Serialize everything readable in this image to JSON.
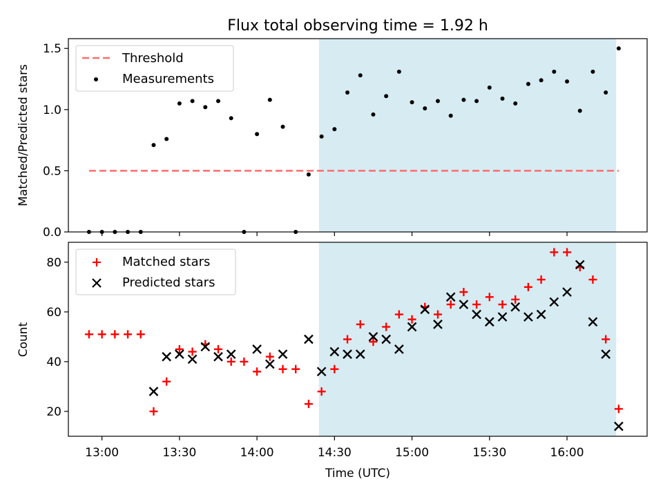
{
  "chart_data": [
    {
      "type": "scatter",
      "panel": "top",
      "title": "Flux total observing time = 1.92 h",
      "xlabel": "",
      "ylabel": "Matched/Predicted stars",
      "ylim": [
        0,
        1.58
      ],
      "yticks": [
        0.0,
        0.5,
        1.0,
        1.5
      ],
      "ytick_labels": [
        "0.0",
        "0.5",
        "1.0",
        "1.5"
      ],
      "legend_position": "top-left",
      "threshold": {
        "name": "Threshold",
        "value": 0.5,
        "x_start": "12:55",
        "x_end": "16:20",
        "color": "#ff6b6b"
      },
      "shaded_span": {
        "x_start": "14:24",
        "x_end": "16:19",
        "color": "#add8e6"
      },
      "series": [
        {
          "name": "Measurements",
          "marker": "dot",
          "color": "#000000",
          "points": [
            [
              "12:55",
              0.0
            ],
            [
              "13:00",
              0.0
            ],
            [
              "13:05",
              0.0
            ],
            [
              "13:10",
              0.0
            ],
            [
              "13:15",
              0.0
            ],
            [
              "13:20",
              0.71
            ],
            [
              "13:25",
              0.76
            ],
            [
              "13:30",
              1.05
            ],
            [
              "13:35",
              1.07
            ],
            [
              "13:40",
              1.02
            ],
            [
              "13:45",
              1.07
            ],
            [
              "13:50",
              0.93
            ],
            [
              "13:55",
              0.0
            ],
            [
              "14:00",
              0.8
            ],
            [
              "14:05",
              1.08
            ],
            [
              "14:10",
              0.86
            ],
            [
              "14:15",
              0.0
            ],
            [
              "14:20",
              0.47
            ],
            [
              "14:25",
              0.78
            ],
            [
              "14:30",
              0.84
            ],
            [
              "14:35",
              1.14
            ],
            [
              "14:40",
              1.28
            ],
            [
              "14:45",
              0.96
            ],
            [
              "14:50",
              1.11
            ],
            [
              "14:55",
              1.31
            ],
            [
              "15:00",
              1.06
            ],
            [
              "15:05",
              1.01
            ],
            [
              "15:10",
              1.07
            ],
            [
              "15:15",
              0.95
            ],
            [
              "15:20",
              1.08
            ],
            [
              "15:25",
              1.07
            ],
            [
              "15:30",
              1.18
            ],
            [
              "15:35",
              1.09
            ],
            [
              "15:40",
              1.05
            ],
            [
              "15:45",
              1.21
            ],
            [
              "15:50",
              1.24
            ],
            [
              "15:55",
              1.31
            ],
            [
              "16:00",
              1.23
            ],
            [
              "16:05",
              0.99
            ],
            [
              "16:10",
              1.31
            ],
            [
              "16:15",
              1.14
            ],
            [
              "16:20",
              1.5
            ]
          ]
        }
      ]
    },
    {
      "type": "scatter",
      "panel": "bottom",
      "title": "",
      "xlabel": "Time (UTC)",
      "ylabel": "Count",
      "ylim": [
        10,
        88
      ],
      "yticks": [
        20,
        40,
        60,
        80
      ],
      "ytick_labels": [
        "20",
        "40",
        "60",
        "80"
      ],
      "xticks": [
        "13:00",
        "13:30",
        "14:00",
        "14:30",
        "15:00",
        "15:30",
        "16:00"
      ],
      "xlim": [
        "12:47",
        "16:31"
      ],
      "legend_position": "top-left",
      "shaded_span": {
        "x_start": "14:24",
        "x_end": "16:19",
        "color": "#add8e6"
      },
      "series": [
        {
          "name": "Matched stars",
          "marker": "plus",
          "color": "#ff0000",
          "points": [
            [
              "12:55",
              51
            ],
            [
              "13:00",
              51
            ],
            [
              "13:05",
              51
            ],
            [
              "13:10",
              51
            ],
            [
              "13:15",
              51
            ],
            [
              "13:20",
              20
            ],
            [
              "13:25",
              32
            ],
            [
              "13:30",
              45
            ],
            [
              "13:35",
              44
            ],
            [
              "13:40",
              47
            ],
            [
              "13:45",
              45
            ],
            [
              "13:50",
              40
            ],
            [
              "13:55",
              40
            ],
            [
              "14:00",
              36
            ],
            [
              "14:05",
              42
            ],
            [
              "14:10",
              37
            ],
            [
              "14:15",
              37
            ],
            [
              "14:20",
              23
            ],
            [
              "14:25",
              28
            ],
            [
              "14:30",
              37
            ],
            [
              "14:35",
              49
            ],
            [
              "14:40",
              55
            ],
            [
              "14:45",
              48
            ],
            [
              "14:50",
              54
            ],
            [
              "14:55",
              59
            ],
            [
              "15:00",
              57
            ],
            [
              "15:05",
              62
            ],
            [
              "15:10",
              59
            ],
            [
              "15:15",
              63
            ],
            [
              "15:20",
              68
            ],
            [
              "15:25",
              63
            ],
            [
              "15:30",
              66
            ],
            [
              "15:35",
              63
            ],
            [
              "15:40",
              65
            ],
            [
              "15:45",
              70
            ],
            [
              "15:50",
              73
            ],
            [
              "15:55",
              84
            ],
            [
              "16:00",
              84
            ],
            [
              "16:05",
              78
            ],
            [
              "16:10",
              73
            ],
            [
              "16:15",
              49
            ],
            [
              "16:20",
              21
            ]
          ]
        },
        {
          "name": "Predicted stars",
          "marker": "x",
          "color": "#000000",
          "points": [
            [
              "13:20",
              28
            ],
            [
              "13:25",
              42
            ],
            [
              "13:30",
              43
            ],
            [
              "13:35",
              41
            ],
            [
              "13:40",
              46
            ],
            [
              "13:45",
              42
            ],
            [
              "13:50",
              43
            ],
            [
              "14:00",
              45
            ],
            [
              "14:05",
              39
            ],
            [
              "14:10",
              43
            ],
            [
              "14:20",
              49
            ],
            [
              "14:25",
              36
            ],
            [
              "14:30",
              44
            ],
            [
              "14:35",
              43
            ],
            [
              "14:40",
              43
            ],
            [
              "14:45",
              50
            ],
            [
              "14:50",
              49
            ],
            [
              "14:55",
              45
            ],
            [
              "15:00",
              54
            ],
            [
              "15:05",
              61
            ],
            [
              "15:10",
              55
            ],
            [
              "15:15",
              66
            ],
            [
              "15:20",
              63
            ],
            [
              "15:25",
              59
            ],
            [
              "15:30",
              56
            ],
            [
              "15:35",
              58
            ],
            [
              "15:40",
              62
            ],
            [
              "15:45",
              58
            ],
            [
              "15:50",
              59
            ],
            [
              "15:55",
              64
            ],
            [
              "16:00",
              68
            ],
            [
              "16:05",
              79
            ],
            [
              "16:10",
              56
            ],
            [
              "16:15",
              43
            ],
            [
              "16:20",
              14
            ]
          ]
        }
      ]
    }
  ]
}
